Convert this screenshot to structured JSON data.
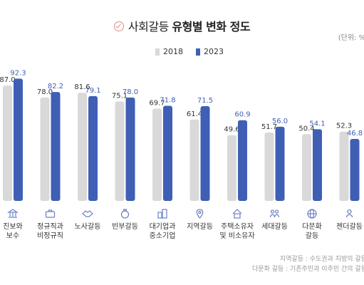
{
  "title_light": "사회갈등",
  "title_bold": "유형별 변화 정도",
  "unit": "(단위: %)",
  "legend": [
    {
      "name": "2018",
      "color": "#d9d9d9"
    },
    {
      "name": "2023",
      "color": "#3f5fb5"
    }
  ],
  "icons": [
    "columns-icon",
    "briefcase-icon",
    "handshake-icon",
    "money-bag-icon",
    "buildings-icon",
    "location-pin-icon",
    "house-icon",
    "people-icon",
    "globe-icon",
    "person-icon"
  ],
  "footnotes": [
    "지역갈등 : 수도권과 지방의 갈등",
    "다문화 갈등 : 기존주민과 이주민 간의 갈등"
  ],
  "chart_data": {
    "type": "bar",
    "categories": [
      [
        "진보와",
        "보수"
      ],
      [
        "정규직과",
        "비정규직"
      ],
      [
        "노사갈등"
      ],
      [
        "빈부갈등"
      ],
      [
        "대기업과",
        "중소기업"
      ],
      [
        "지역갈등"
      ],
      [
        "주택소유자",
        "및 비소유자"
      ],
      [
        "세대갈등"
      ],
      [
        "다문화",
        "갈등"
      ],
      [
        "젠더갈등"
      ]
    ],
    "series": [
      {
        "name": "2018",
        "values": [
          87.0,
          78.0,
          81.6,
          75.1,
          69.7,
          61.4,
          49.6,
          51.7,
          50.4,
          52.3
        ]
      },
      {
        "name": "2023",
        "values": [
          92.3,
          82.2,
          79.1,
          78.0,
          71.8,
          71.5,
          60.9,
          56.0,
          54.1,
          46.8
        ]
      }
    ],
    "colors": {
      "2018": "#d9d9d9",
      "2023": "#3f5fb5"
    },
    "label_colors": {
      "2018": "#333333",
      "2023": "#3f5fb5"
    },
    "ylim": [
      0,
      100
    ],
    "legend_position": "top-center",
    "grid": false
  }
}
